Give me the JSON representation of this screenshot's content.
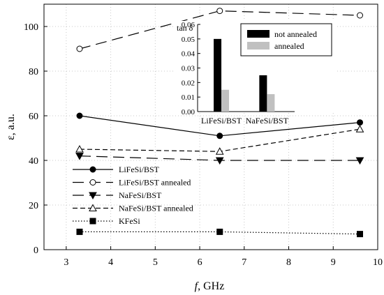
{
  "chart_data": [
    {
      "type": "line",
      "xlabel_var": "f",
      "xlabel_unit": ", GHz",
      "ylabel": "ε, a.u.",
      "xlim": [
        2.5,
        10
      ],
      "ylim": [
        0,
        110
      ],
      "xticks": [
        3,
        4,
        5,
        6,
        7,
        8,
        9,
        10
      ],
      "yticks": [
        0,
        20,
        40,
        60,
        80,
        100
      ],
      "grid": true,
      "legend_position": "bottom-left",
      "series": [
        {
          "name": "LiFeSi/BST",
          "x": [
            3.3,
            6.45,
            9.6
          ],
          "y": [
            60,
            51,
            57
          ],
          "marker": "circle-filled",
          "line": "solid"
        },
        {
          "name": "LiFeSi/BST annealed",
          "x": [
            3.3,
            6.45,
            9.6
          ],
          "y": [
            90,
            107,
            105
          ],
          "marker": "circle-open",
          "line": "long-dash"
        },
        {
          "name": "NaFeSi/BST",
          "x": [
            3.3,
            6.45,
            9.6
          ],
          "y": [
            42,
            40,
            40
          ],
          "marker": "triangle-down-filled",
          "line": "long-dash"
        },
        {
          "name": "NaFeSi/BST annealed",
          "x": [
            3.3,
            6.45,
            9.6
          ],
          "y": [
            45,
            44,
            54
          ],
          "marker": "triangle-up-open",
          "line": "short-dash"
        },
        {
          "name": "KFeSi",
          "x": [
            3.3,
            6.45,
            9.6
          ],
          "y": [
            8,
            8,
            7
          ],
          "marker": "square-filled",
          "line": "dotted"
        }
      ]
    },
    {
      "type": "bar",
      "ylabel": "tan δ",
      "categories": [
        "LiFeSi/BST",
        "NaFeSi/BST"
      ],
      "ylim": [
        0,
        0.06
      ],
      "yticks": [
        "0.00",
        "0.01",
        "0.02",
        "0.03",
        "0.04",
        "0.05",
        "0.06"
      ],
      "legend_position": "top-right",
      "series": [
        {
          "name": "not annealed",
          "values": [
            0.05,
            0.025
          ],
          "color": "#000000"
        },
        {
          "name": "annealed",
          "values": [
            0.015,
            0.012
          ],
          "color": "#c0c0c0"
        }
      ]
    }
  ]
}
